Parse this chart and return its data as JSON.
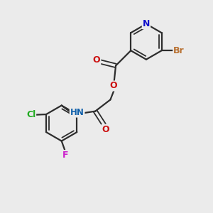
{
  "bg_color": "#ebebeb",
  "bond_color": "#2d2d2d",
  "atom_colors": {
    "N_pyridine": "#1010cc",
    "O": "#cc1010",
    "Br": "#b87030",
    "Cl": "#20aa20",
    "F": "#cc20cc",
    "N_amide": "#1060aa",
    "H": "#888888"
  },
  "figsize": [
    3.0,
    3.0
  ],
  "dpi": 100
}
